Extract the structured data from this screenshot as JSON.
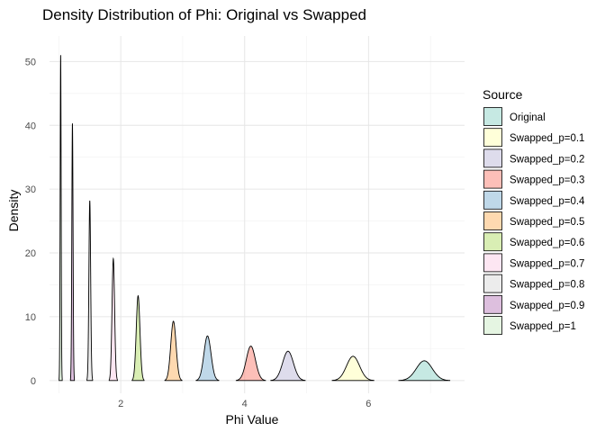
{
  "chart_data": {
    "type": "area",
    "title": "Density Distribution of Phi: Original vs Swapped",
    "xlabel": "Phi Value",
    "ylabel": "Density",
    "xlim": [
      0.85,
      7.55
    ],
    "ylim": [
      -2.0,
      54.0
    ],
    "x_ticks": [
      2,
      4,
      6
    ],
    "y_ticks": [
      0,
      10,
      20,
      30,
      40,
      50
    ],
    "grid": true,
    "legend_title": "Source",
    "legend_position": "right",
    "series": [
      {
        "name": "Original",
        "color": "#8DD3C7",
        "peak_x": 6.9,
        "peak_y": 3.1
      },
      {
        "name": "Swapped_p=0.1",
        "color": "#FFFFB3",
        "peak_x": 5.75,
        "peak_y": 3.8
      },
      {
        "name": "Swapped_p=0.2",
        "color": "#BEBADA",
        "peak_x": 4.7,
        "peak_y": 4.6
      },
      {
        "name": "Swapped_p=0.3",
        "color": "#FB8072",
        "peak_x": 4.1,
        "peak_y": 5.4
      },
      {
        "name": "Swapped_p=0.4",
        "color": "#80B1D3",
        "peak_x": 3.4,
        "peak_y": 7.0
      },
      {
        "name": "Swapped_p=0.5",
        "color": "#FDB462",
        "peak_x": 2.85,
        "peak_y": 9.3
      },
      {
        "name": "Swapped_p=0.6",
        "color": "#B3DE69",
        "peak_x": 2.28,
        "peak_y": 13.3
      },
      {
        "name": "Swapped_p=0.7",
        "color": "#FCCDE5",
        "peak_x": 1.88,
        "peak_y": 19.1
      },
      {
        "name": "Swapped_p=0.8",
        "color": "#D9D9D9",
        "peak_x": 1.5,
        "peak_y": 28.2
      },
      {
        "name": "Swapped_p=0.9",
        "color": "#BC80BD",
        "peak_x": 1.22,
        "peak_y": 40.3
      },
      {
        "name": "Swapped_p=1",
        "color": "#CCEBC5",
        "peak_x": 1.03,
        "peak_y": 51.0
      }
    ]
  }
}
